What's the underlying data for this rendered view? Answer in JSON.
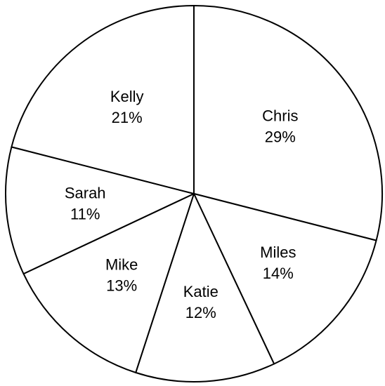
{
  "chart_data": {
    "type": "pie",
    "title": "",
    "start_angle_deg": 0,
    "direction": "clockwise",
    "slices": [
      {
        "label": "Chris",
        "value": 29,
        "value_label": "29%"
      },
      {
        "label": "Miles",
        "value": 14,
        "value_label": "14%"
      },
      {
        "label": "Katie",
        "value": 12,
        "value_label": "12%"
      },
      {
        "label": "Mike",
        "value": 13,
        "value_label": "13%"
      },
      {
        "label": "Sarah",
        "value": 11,
        "value_label": "11%"
      },
      {
        "label": "Kelly",
        "value": 21,
        "value_label": "21%"
      }
    ],
    "colors": {
      "fill": "#ffffff",
      "stroke": "#000000",
      "text": "#000000"
    }
  }
}
